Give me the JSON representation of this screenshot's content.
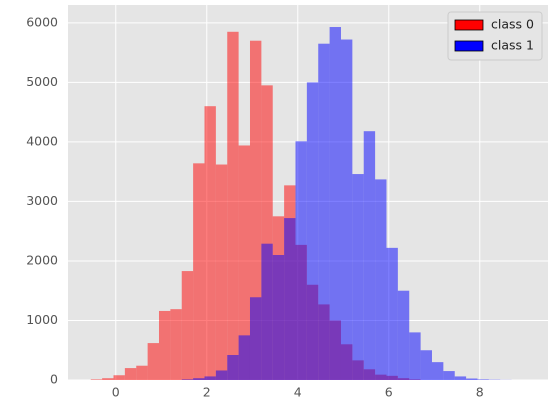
{
  "chart_data": {
    "type": "histogram",
    "series": [
      {
        "name": "class 0",
        "color": "red",
        "bins": [
          -0.55,
          -0.3,
          -0.05,
          0.2,
          0.45,
          0.7,
          0.95,
          1.2,
          1.45,
          1.7,
          1.95,
          2.2,
          2.45,
          2.7,
          2.95,
          3.2,
          3.45,
          3.7,
          3.95,
          4.2,
          4.45,
          4.7,
          4.95,
          5.2,
          5.45,
          5.7,
          5.95,
          6.2,
          6.45,
          6.7
        ],
        "values": [
          10,
          30,
          80,
          200,
          240,
          620,
          1160,
          1190,
          1830,
          3640,
          4600,
          3620,
          5850,
          3940,
          5700,
          4950,
          2750,
          3270,
          2270,
          1600,
          1270,
          1000,
          600,
          330,
          180,
          90,
          70,
          30,
          10
        ]
      },
      {
        "name": "class 1",
        "color": "blue",
        "bins": [
          1.45,
          1.7,
          1.95,
          2.2,
          2.45,
          2.7,
          2.95,
          3.2,
          3.45,
          3.7,
          3.95,
          4.2,
          4.45,
          4.7,
          4.95,
          5.2,
          5.45,
          5.7,
          5.95,
          6.2,
          6.45,
          6.7,
          6.95,
          7.2,
          7.45,
          7.7,
          7.95,
          8.2,
          8.45,
          8.7
        ],
        "values": [
          10,
          30,
          60,
          160,
          420,
          750,
          1390,
          2290,
          2100,
          2720,
          4010,
          5000,
          5650,
          5930,
          5720,
          3460,
          4180,
          3370,
          2220,
          1500,
          800,
          500,
          300,
          150,
          60,
          25,
          10,
          5,
          2
        ]
      }
    ],
    "alpha": 0.5,
    "xlim": [
      -1.05,
      9.5
    ],
    "ylim": [
      0,
      6300
    ],
    "xticks": [
      0,
      2,
      4,
      6,
      8
    ],
    "yticks": [
      0,
      1000,
      2000,
      3000,
      4000,
      5000,
      6000
    ],
    "grid": true,
    "legend": "upper right"
  }
}
